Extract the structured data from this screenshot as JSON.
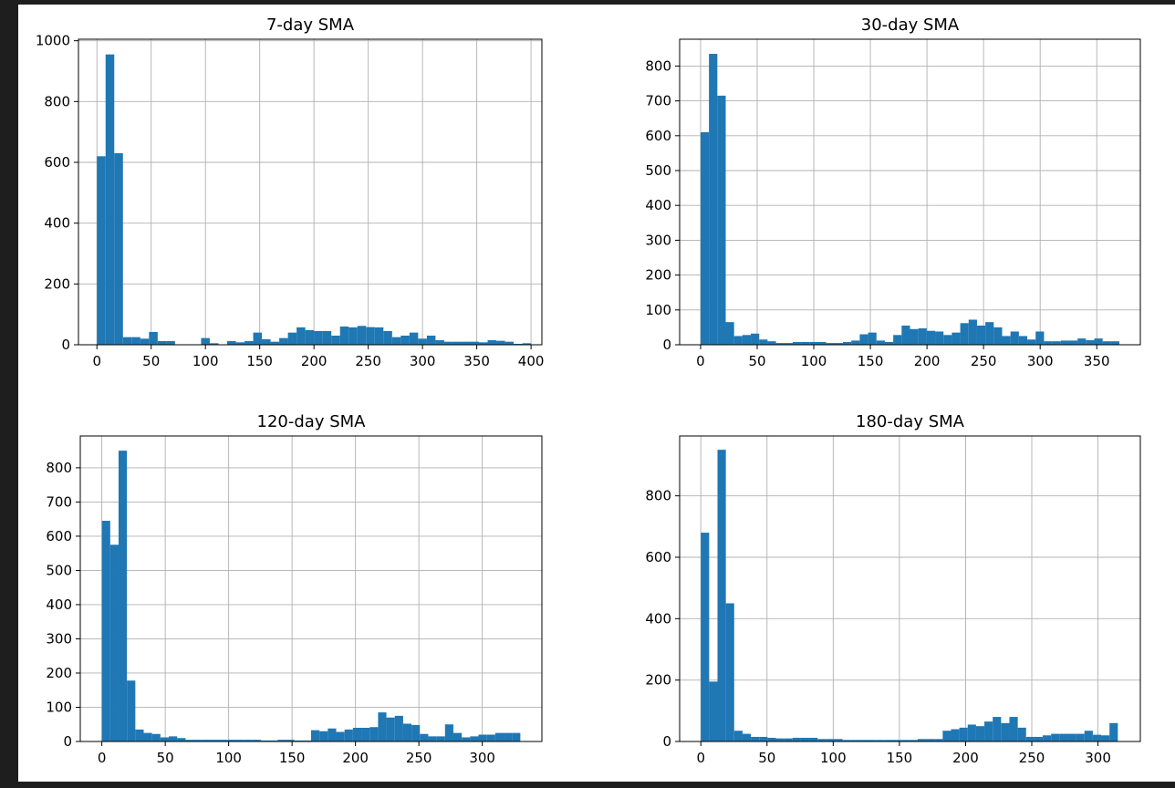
{
  "figure": {
    "background": "#ffffff",
    "bar_color": "#1f77b4",
    "grid_color": "#b0b0b0"
  },
  "chart_data": [
    {
      "type": "bar",
      "title": "7-day SMA",
      "xlabel": "",
      "ylabel": "",
      "grid": true,
      "bin_edges": [
        0,
        8,
        16,
        24,
        32,
        40,
        48,
        56,
        64,
        72,
        80,
        88,
        96,
        104,
        112,
        120,
        128,
        136,
        144,
        152,
        160,
        168,
        176,
        184,
        192,
        200,
        208,
        216,
        224,
        232,
        240,
        248,
        256,
        264,
        272,
        280,
        288,
        296,
        304,
        312,
        320,
        328,
        336,
        344,
        352,
        360,
        368,
        376,
        384,
        392,
        400
      ],
      "values": [
        620,
        955,
        630,
        25,
        25,
        20,
        42,
        12,
        12,
        0,
        0,
        0,
        22,
        5,
        0,
        12,
        8,
        12,
        40,
        18,
        10,
        22,
        40,
        57,
        48,
        45,
        45,
        30,
        60,
        57,
        62,
        58,
        57,
        45,
        25,
        30,
        40,
        20,
        30,
        15,
        10,
        10,
        10,
        10,
        8,
        15,
        13,
        10,
        3,
        5
      ],
      "xlim": [
        -17,
        410
      ],
      "ylim": [
        0,
        1005
      ],
      "xticks": [
        0,
        50,
        100,
        150,
        200,
        250,
        300,
        350,
        400
      ],
      "yticks": [
        0,
        200,
        400,
        600,
        800,
        1000
      ]
    },
    {
      "type": "bar",
      "title": "30-day SMA",
      "xlabel": "",
      "ylabel": "",
      "grid": true,
      "bin_edges": [
        0,
        7.4,
        14.8,
        22.2,
        29.6,
        37,
        44.4,
        51.8,
        59.2,
        66.6,
        74,
        81.4,
        88.8,
        96.2,
        103.6,
        111,
        118.4,
        125.8,
        133.2,
        140.6,
        148,
        155.4,
        162.8,
        170.2,
        177.6,
        185,
        192.4,
        199.8,
        207.2,
        214.6,
        222,
        229.4,
        236.8,
        244.2,
        251.6,
        259,
        266.4,
        273.8,
        281.2,
        288.6,
        296,
        303.4,
        310.8,
        318.2,
        325.6,
        333,
        340.4,
        347.8,
        355.2,
        362.6,
        370
      ],
      "values": [
        610,
        835,
        715,
        65,
        25,
        28,
        32,
        15,
        10,
        5,
        5,
        8,
        8,
        8,
        8,
        5,
        5,
        8,
        12,
        30,
        35,
        12,
        8,
        28,
        55,
        45,
        47,
        40,
        38,
        28,
        35,
        62,
        72,
        55,
        65,
        50,
        25,
        38,
        25,
        15,
        38,
        10,
        10,
        12,
        12,
        18,
        13,
        18,
        10,
        10
      ],
      "xlim": [
        -18.5,
        388.5
      ],
      "ylim": [
        0,
        877
      ],
      "xticks": [
        0,
        50,
        100,
        150,
        200,
        250,
        300,
        350
      ],
      "yticks": [
        0,
        100,
        200,
        300,
        400,
        500,
        600,
        700,
        800
      ]
    },
    {
      "type": "bar",
      "title": "120-day SMA",
      "xlabel": "",
      "ylabel": "",
      "grid": true,
      "bin_edges": [
        0,
        6.6,
        13.2,
        19.8,
        26.4,
        33,
        39.6,
        46.2,
        52.8,
        59.4,
        66,
        72.6,
        79.2,
        85.8,
        92.4,
        99,
        105.6,
        112.2,
        118.8,
        125.4,
        132,
        138.6,
        145.2,
        151.8,
        158.4,
        165,
        171.6,
        178.2,
        184.8,
        191.4,
        198,
        204.6,
        211.2,
        217.8,
        224.4,
        231,
        237.6,
        244.2,
        250.8,
        257.4,
        264,
        270.6,
        277.2,
        283.8,
        290.4,
        297,
        303.6,
        310.2,
        316.8,
        323.4,
        330
      ],
      "values": [
        645,
        575,
        850,
        178,
        35,
        25,
        22,
        12,
        15,
        10,
        5,
        5,
        5,
        5,
        5,
        5,
        5,
        5,
        5,
        3,
        3,
        5,
        5,
        3,
        3,
        33,
        30,
        38,
        28,
        35,
        40,
        40,
        42,
        85,
        70,
        75,
        52,
        48,
        22,
        15,
        15,
        50,
        25,
        12,
        15,
        20,
        20,
        25,
        25,
        25
      ],
      "xlim": [
        -17,
        347
      ],
      "ylim": [
        0,
        893
      ],
      "xticks": [
        0,
        50,
        100,
        150,
        200,
        250,
        300
      ],
      "yticks": [
        0,
        100,
        200,
        300,
        400,
        500,
        600,
        700,
        800
      ]
    },
    {
      "type": "bar",
      "title": "180-day SMA",
      "xlabel": "",
      "ylabel": "",
      "grid": true,
      "bin_edges": [
        0,
        6.3,
        12.6,
        18.9,
        25.2,
        31.5,
        37.8,
        44.1,
        50.4,
        56.7,
        63,
        69.3,
        75.6,
        81.9,
        88.2,
        94.5,
        100.8,
        107.1,
        113.4,
        119.7,
        126,
        132.3,
        138.6,
        144.9,
        151.2,
        157.5,
        163.8,
        170.1,
        176.4,
        182.7,
        189,
        195.3,
        201.6,
        207.9,
        214.2,
        220.5,
        226.8,
        233.1,
        239.4,
        245.7,
        252,
        258.3,
        264.6,
        270.9,
        277.2,
        283.5,
        289.8,
        296.1,
        302.4,
        308.7,
        315
      ],
      "values": [
        680,
        195,
        950,
        450,
        35,
        25,
        15,
        15,
        12,
        10,
        10,
        12,
        12,
        12,
        8,
        8,
        8,
        5,
        5,
        5,
        5,
        5,
        5,
        5,
        5,
        5,
        8,
        8,
        8,
        35,
        40,
        45,
        55,
        50,
        65,
        80,
        60,
        80,
        45,
        15,
        15,
        20,
        25,
        25,
        25,
        25,
        35,
        22,
        20,
        60
      ],
      "xlim": [
        -16,
        332
      ],
      "ylim": [
        0,
        995
      ],
      "xticks": [
        0,
        50,
        100,
        150,
        200,
        250,
        300
      ],
      "yticks": [
        0,
        200,
        400,
        600,
        800
      ]
    }
  ]
}
